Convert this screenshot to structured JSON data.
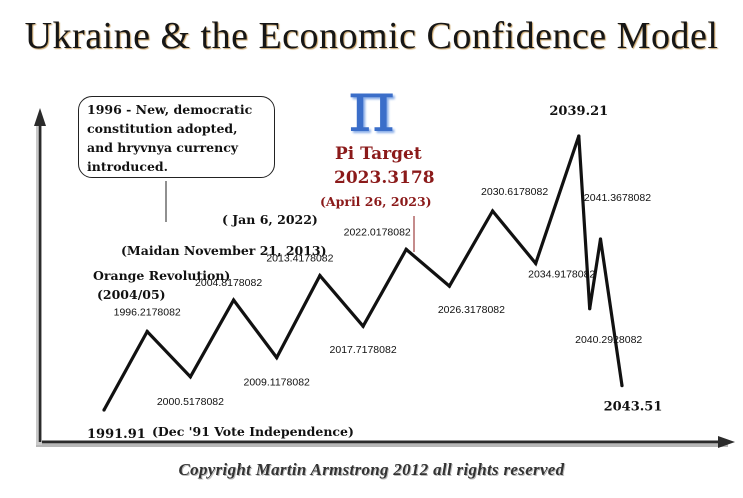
{
  "title": "Ukraine & the Economic Confidence Model",
  "copyright": "Copyright Martin Armstrong 2012 all rights reserved",
  "note_box": {
    "lines": [
      "1996 - New, democratic",
      "constitution adopted,",
      "and hryvnya currency",
      "introduced."
    ]
  },
  "pi_symbol": "π",
  "pi_target": {
    "label": "Pi Target",
    "value": "2023.3178",
    "date": "(April 26, 2023)",
    "color": "#8b1a1a"
  },
  "annotations": {
    "jan_2022": "( Jan 6, 2022)",
    "maidan": "(Maidan November 21, 2013)",
    "orange_revolution": "Orange Revolution)",
    "orange_years": "(2004/05)",
    "independence_vote": "(Dec '91 Vote Independence)"
  },
  "chart_data": {
    "type": "line",
    "title": "Ukraine & the Economic Confidence Model",
    "xlabel": "",
    "ylabel": "",
    "axes": {
      "x_arrow": true,
      "y_arrow": true,
      "ticks": false,
      "grid": false
    },
    "series": [
      {
        "name": "Economic Confidence Model",
        "points": [
          {
            "x": 1991.91,
            "y": 0.0,
            "label": "1991.91",
            "type": "start"
          },
          {
            "x": 1996.2178082,
            "y": 4.5,
            "label": "1996.2178082",
            "type": "peak"
          },
          {
            "x": 2000.5178082,
            "y": 1.9,
            "label": "2000.5178082",
            "type": "trough"
          },
          {
            "x": 2004.8178082,
            "y": 6.3,
            "label": "2004.8178082",
            "type": "peak"
          },
          {
            "x": 2009.1178082,
            "y": 3.0,
            "label": "2009.1178082",
            "type": "trough"
          },
          {
            "x": 2013.4178082,
            "y": 7.7,
            "label": "2013.4178082",
            "type": "peak"
          },
          {
            "x": 2017.7178082,
            "y": 4.8,
            "label": "2017.7178082",
            "type": "trough"
          },
          {
            "x": 2022.0178082,
            "y": 9.2,
            "label": "2022.0178082",
            "type": "peak"
          },
          {
            "x": 2026.3178082,
            "y": 7.1,
            "label": "2026.3178082",
            "type": "trough"
          },
          {
            "x": 2030.6178082,
            "y": 11.4,
            "label": "2030.6178082",
            "type": "peak"
          },
          {
            "x": 2034.9178082,
            "y": 8.4,
            "label": "2034.9178082",
            "type": "trough"
          },
          {
            "x": 2039.21,
            "y": 15.7,
            "label": "2039.21",
            "type": "peak"
          },
          {
            "x": 2040.2928082,
            "y": 5.8,
            "label": "2040.2928082",
            "type": "trough"
          },
          {
            "x": 2041.3678082,
            "y": 9.8,
            "label": "2041.3678082",
            "type": "peak"
          },
          {
            "x": 2043.51,
            "y": 1.4,
            "label": "2043.51",
            "type": "end"
          }
        ]
      }
    ]
  }
}
